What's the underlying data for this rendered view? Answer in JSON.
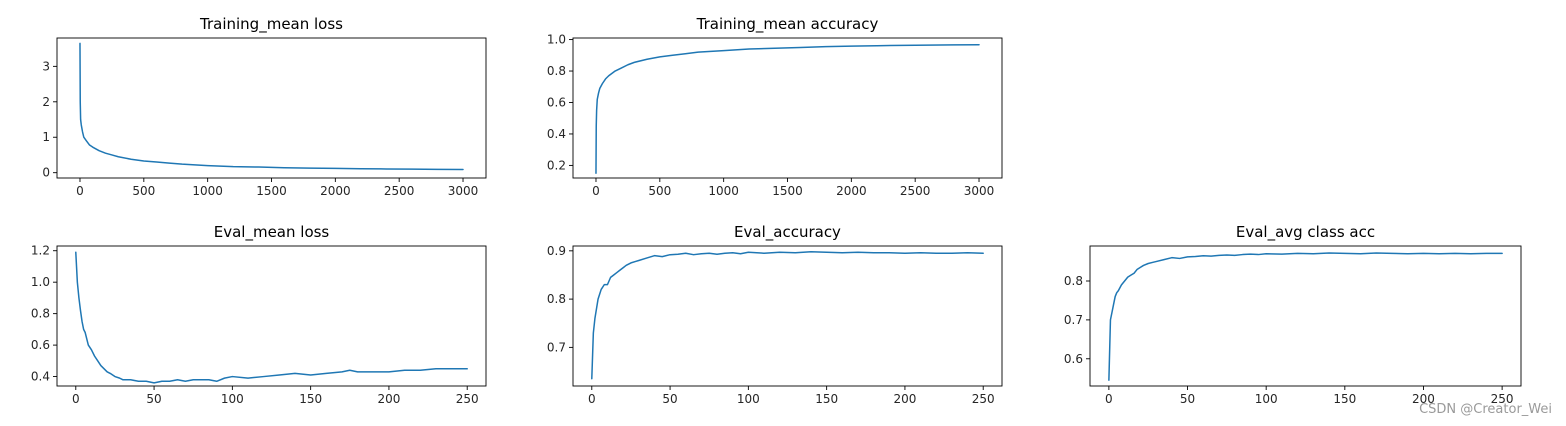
{
  "watermark": "CSDN @Creator_Wei",
  "line_color": "#1f77b4",
  "chart_data": [
    {
      "type": "line",
      "title": "Training_mean loss",
      "xlim": [
        -180,
        3180
      ],
      "ylim": [
        -0.15,
        3.8
      ],
      "xticks": [
        0,
        500,
        1000,
        1500,
        2000,
        2500,
        3000
      ],
      "yticks": [
        0,
        1,
        2,
        3
      ],
      "x": [
        0,
        2,
        5,
        10,
        20,
        30,
        50,
        75,
        100,
        150,
        200,
        250,
        300,
        400,
        500,
        600,
        700,
        800,
        900,
        1000,
        1200,
        1400,
        1600,
        1800,
        2000,
        2200,
        2400,
        2600,
        2800,
        3000
      ],
      "values": [
        3.65,
        2.0,
        1.5,
        1.35,
        1.15,
        1.0,
        0.9,
        0.78,
        0.72,
        0.62,
        0.55,
        0.5,
        0.45,
        0.38,
        0.33,
        0.3,
        0.27,
        0.24,
        0.22,
        0.2,
        0.17,
        0.16,
        0.14,
        0.13,
        0.12,
        0.11,
        0.105,
        0.1,
        0.095,
        0.09
      ]
    },
    {
      "type": "line",
      "title": "Training_mean accuracy",
      "xlim": [
        -180,
        3180
      ],
      "ylim": [
        0.12,
        1.01
      ],
      "xticks": [
        0,
        500,
        1000,
        1500,
        2000,
        2500,
        3000
      ],
      "yticks": [
        0.2,
        0.4,
        0.6,
        0.8,
        1.0
      ],
      "x": [
        0,
        2,
        5,
        10,
        20,
        30,
        50,
        75,
        100,
        150,
        200,
        250,
        300,
        400,
        500,
        600,
        700,
        800,
        900,
        1000,
        1200,
        1400,
        1600,
        1800,
        2000,
        2200,
        2400,
        2600,
        2800,
        3000
      ],
      "values": [
        0.15,
        0.45,
        0.55,
        0.62,
        0.66,
        0.69,
        0.72,
        0.75,
        0.77,
        0.8,
        0.82,
        0.84,
        0.855,
        0.875,
        0.89,
        0.9,
        0.91,
        0.92,
        0.925,
        0.93,
        0.94,
        0.945,
        0.95,
        0.955,
        0.958,
        0.961,
        0.963,
        0.965,
        0.966,
        0.967
      ]
    },
    {
      "type": "line",
      "title": "Eval_mean loss",
      "xlim": [
        -12,
        262
      ],
      "ylim": [
        0.34,
        1.23
      ],
      "xticks": [
        0,
        50,
        100,
        150,
        200,
        250
      ],
      "yticks": [
        0.4,
        0.6,
        0.8,
        1.0,
        1.2
      ],
      "x": [
        0,
        1,
        2,
        3,
        4,
        5,
        6,
        8,
        10,
        12,
        14,
        16,
        18,
        20,
        22,
        25,
        28,
        30,
        35,
        40,
        45,
        50,
        55,
        60,
        65,
        70,
        75,
        80,
        85,
        90,
        95,
        100,
        110,
        120,
        130,
        140,
        150,
        160,
        170,
        175,
        180,
        190,
        200,
        210,
        220,
        230,
        240,
        250
      ],
      "values": [
        1.19,
        1.0,
        0.9,
        0.82,
        0.75,
        0.7,
        0.68,
        0.6,
        0.57,
        0.53,
        0.5,
        0.47,
        0.45,
        0.43,
        0.42,
        0.4,
        0.39,
        0.38,
        0.38,
        0.37,
        0.37,
        0.36,
        0.37,
        0.37,
        0.38,
        0.37,
        0.38,
        0.38,
        0.38,
        0.37,
        0.39,
        0.4,
        0.39,
        0.4,
        0.41,
        0.42,
        0.41,
        0.42,
        0.43,
        0.44,
        0.43,
        0.43,
        0.43,
        0.44,
        0.44,
        0.45,
        0.45,
        0.45
      ]
    },
    {
      "type": "line",
      "title": "Eval_accuracy",
      "xlim": [
        -12,
        262
      ],
      "ylim": [
        0.62,
        0.91
      ],
      "xticks": [
        0,
        50,
        100,
        150,
        200,
        250
      ],
      "yticks": [
        0.7,
        0.8,
        0.9
      ],
      "x": [
        0,
        1,
        2,
        3,
        4,
        5,
        6,
        8,
        10,
        12,
        14,
        16,
        18,
        20,
        22,
        25,
        28,
        30,
        35,
        40,
        45,
        50,
        55,
        60,
        65,
        70,
        75,
        80,
        85,
        90,
        95,
        100,
        110,
        120,
        130,
        140,
        150,
        160,
        170,
        180,
        190,
        200,
        210,
        220,
        230,
        240,
        250
      ],
      "values": [
        0.635,
        0.73,
        0.76,
        0.78,
        0.8,
        0.81,
        0.82,
        0.83,
        0.83,
        0.845,
        0.85,
        0.855,
        0.86,
        0.865,
        0.87,
        0.875,
        0.878,
        0.88,
        0.885,
        0.89,
        0.888,
        0.892,
        0.893,
        0.895,
        0.892,
        0.894,
        0.895,
        0.893,
        0.895,
        0.896,
        0.894,
        0.897,
        0.895,
        0.897,
        0.896,
        0.898,
        0.897,
        0.896,
        0.897,
        0.896,
        0.896,
        0.895,
        0.896,
        0.895,
        0.895,
        0.896,
        0.895
      ]
    },
    {
      "type": "line",
      "title": "Eval_avg class acc",
      "xlim": [
        -12,
        262
      ],
      "ylim": [
        0.53,
        0.89
      ],
      "xticks": [
        0,
        50,
        100,
        150,
        200,
        250
      ],
      "yticks": [
        0.6,
        0.7,
        0.8
      ],
      "x": [
        0,
        1,
        2,
        3,
        4,
        5,
        6,
        8,
        10,
        12,
        14,
        16,
        18,
        20,
        22,
        25,
        28,
        30,
        35,
        40,
        45,
        50,
        55,
        60,
        65,
        70,
        75,
        80,
        85,
        90,
        95,
        100,
        110,
        120,
        130,
        140,
        150,
        160,
        170,
        180,
        190,
        200,
        210,
        220,
        230,
        240,
        250
      ],
      "values": [
        0.545,
        0.7,
        0.72,
        0.74,
        0.76,
        0.77,
        0.775,
        0.79,
        0.8,
        0.81,
        0.815,
        0.82,
        0.83,
        0.835,
        0.84,
        0.845,
        0.848,
        0.85,
        0.855,
        0.86,
        0.858,
        0.862,
        0.863,
        0.865,
        0.864,
        0.866,
        0.867,
        0.866,
        0.868,
        0.869,
        0.868,
        0.87,
        0.869,
        0.871,
        0.87,
        0.872,
        0.871,
        0.87,
        0.872,
        0.871,
        0.87,
        0.871,
        0.87,
        0.871,
        0.87,
        0.871,
        0.871
      ]
    }
  ]
}
